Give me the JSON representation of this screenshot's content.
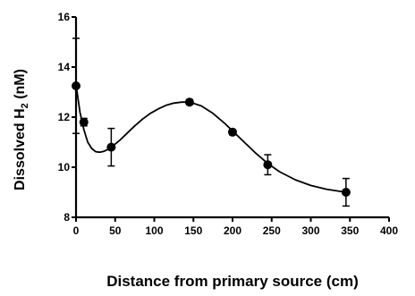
{
  "chart_data": {
    "type": "scatter",
    "title": "",
    "xlabel": "Distance from primary source (cm)",
    "ylabel_main": "Dissolved H",
    "ylabel_sub": "2",
    "ylabel_tail": " (nM)",
    "xlim": [
      0,
      400
    ],
    "ylim": [
      8,
      16
    ],
    "x_ticks": [
      0,
      50,
      100,
      150,
      200,
      250,
      300,
      350,
      400
    ],
    "y_ticks": [
      8,
      10,
      12,
      14,
      16
    ],
    "grid": false,
    "legend": "none",
    "series": [
      {
        "points": [
          {
            "x": 0,
            "y": 13.25,
            "err": 1.9
          },
          {
            "x": 10,
            "y": 11.8,
            "err": 0.15
          },
          {
            "x": 45,
            "y": 10.8,
            "err": 0.75
          },
          {
            "x": 145,
            "y": 12.6,
            "err": 0.1
          },
          {
            "x": 200,
            "y": 11.4,
            "err": 0.1
          },
          {
            "x": 245,
            "y": 10.1,
            "err": 0.4
          },
          {
            "x": 345,
            "y": 9.0,
            "err": 0.55
          }
        ],
        "fit_curve": [
          [
            0,
            13.3
          ],
          [
            5,
            12.2
          ],
          [
            10,
            11.5
          ],
          [
            15,
            11.0
          ],
          [
            20,
            10.75
          ],
          [
            25,
            10.62
          ],
          [
            30,
            10.6
          ],
          [
            35,
            10.63
          ],
          [
            40,
            10.7
          ],
          [
            45,
            10.8
          ],
          [
            55,
            11.05
          ],
          [
            65,
            11.35
          ],
          [
            75,
            11.65
          ],
          [
            85,
            11.92
          ],
          [
            95,
            12.15
          ],
          [
            105,
            12.33
          ],
          [
            115,
            12.47
          ],
          [
            125,
            12.56
          ],
          [
            135,
            12.6
          ],
          [
            145,
            12.6
          ],
          [
            160,
            12.45
          ],
          [
            175,
            12.15
          ],
          [
            190,
            11.75
          ],
          [
            200,
            11.45
          ],
          [
            215,
            11.0
          ],
          [
            230,
            10.55
          ],
          [
            245,
            10.15
          ],
          [
            260,
            9.82
          ],
          [
            280,
            9.5
          ],
          [
            300,
            9.27
          ],
          [
            320,
            9.12
          ],
          [
            345,
            9.0
          ]
        ]
      }
    ]
  }
}
